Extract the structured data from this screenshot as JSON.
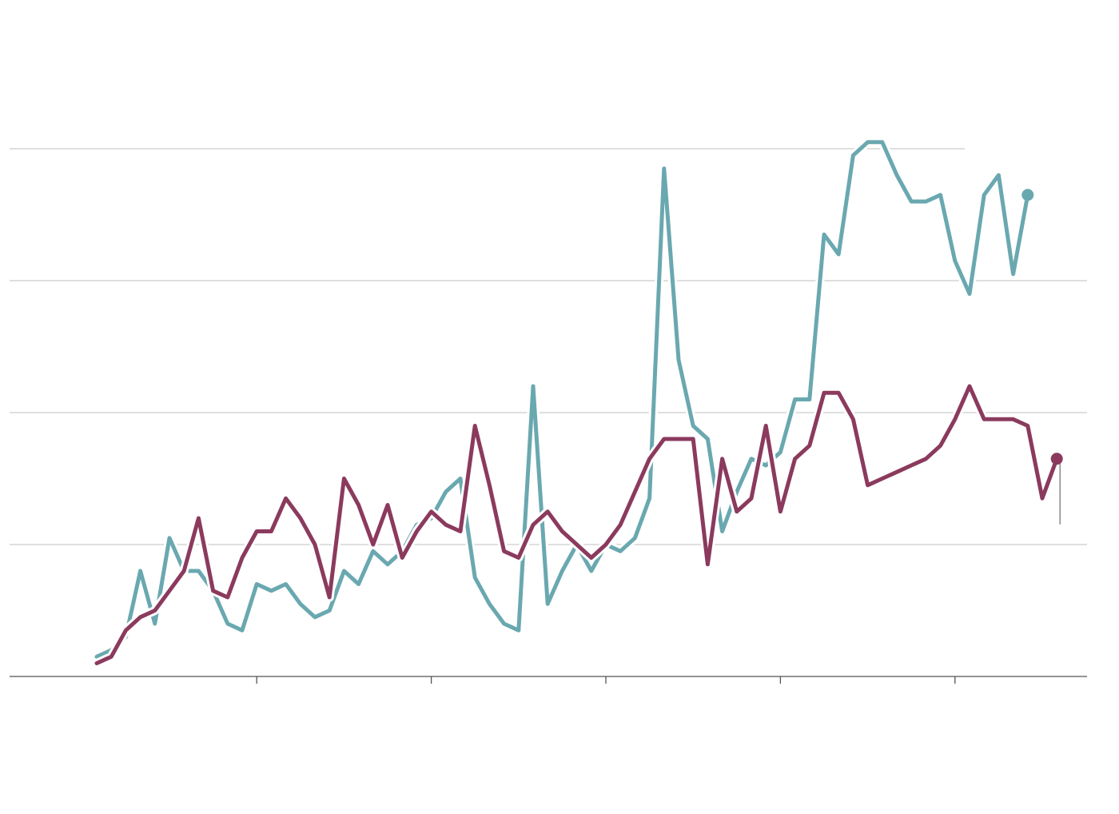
{
  "chart_data": {
    "type": "line",
    "title": "",
    "xlabel": "",
    "ylabel": "",
    "x_range": [
      0,
      69
    ],
    "ylim": [
      0,
      4
    ],
    "y_gridlines": [
      1,
      2,
      3,
      4
    ],
    "x_ticks": [
      11,
      23,
      35,
      47,
      59
    ],
    "grid": true,
    "legend": "none",
    "series": [
      {
        "color": "#6aa8b0",
        "values": [
          0.15,
          0.2,
          0.3,
          0.8,
          0.4,
          1.05,
          0.8,
          0.8,
          0.65,
          0.4,
          0.35,
          0.7,
          0.65,
          0.7,
          0.55,
          0.45,
          0.5,
          0.8,
          0.7,
          0.95,
          0.85,
          0.95,
          1.15,
          1.2,
          1.4,
          1.5,
          0.75,
          0.55,
          0.4,
          0.35,
          2.2,
          0.55,
          0.8,
          1.0,
          0.8,
          1.0,
          0.95,
          1.05,
          1.35,
          3.85,
          2.4,
          1.9,
          1.8,
          1.1,
          1.4,
          1.65,
          1.6,
          1.7,
          2.1,
          2.1,
          3.35,
          3.2,
          3.95,
          4.05,
          4.05,
          3.8,
          3.6,
          3.6,
          3.65,
          3.15,
          2.9,
          3.65,
          3.8,
          3.05,
          3.65
        ]
      },
      {
        "color": "#8b3a5e",
        "values": [
          0.1,
          0.15,
          0.35,
          0.45,
          0.5,
          0.65,
          0.8,
          1.2,
          0.65,
          0.6,
          0.9,
          1.1,
          1.1,
          1.35,
          1.2,
          1.0,
          0.6,
          1.5,
          1.3,
          1.0,
          1.3,
          0.9,
          1.1,
          1.25,
          1.15,
          1.1,
          1.9,
          1.45,
          0.95,
          0.9,
          1.15,
          1.25,
          1.1,
          1.0,
          0.9,
          1.0,
          1.15,
          1.4,
          1.65,
          1.8,
          1.8,
          1.8,
          0.85,
          1.65,
          1.25,
          1.35,
          1.9,
          1.25,
          1.65,
          1.75,
          2.15,
          2.15,
          1.95,
          1.45,
          1.5,
          1.55,
          1.6,
          1.65,
          1.75,
          1.95,
          2.2,
          1.95,
          1.95,
          1.95,
          1.9,
          1.35,
          1.65
        ]
      }
    ]
  }
}
